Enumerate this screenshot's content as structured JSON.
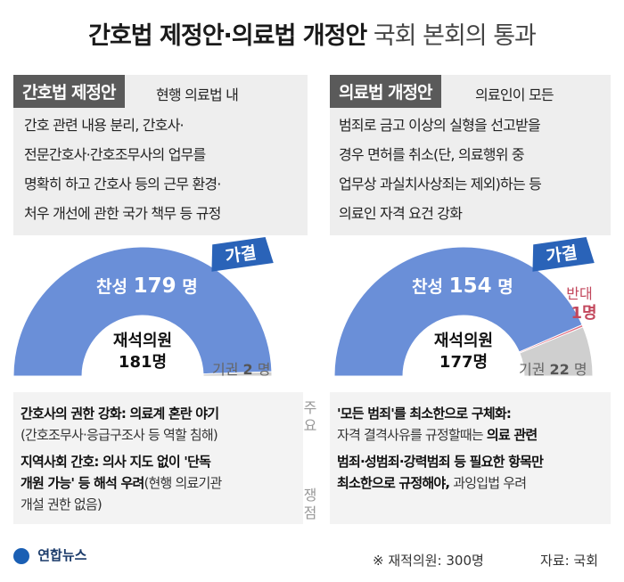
{
  "title": {
    "bold": "간호법 제정안·의료법 개정안",
    "light": "국회 본회의 통과"
  },
  "left": {
    "tag": "간호법 제정안",
    "desc": [
      "현행 의료법 내",
      "간호 관련 내용 분리, 간호사·",
      "전문간호사·간호조무사의 업무를",
      "명확히 하고 간호사 등의 근무 환경·",
      "처우 개선에 관한 국가 책무 등 규정"
    ],
    "result": "가결",
    "yes_label": "찬성",
    "yes_value": "179",
    "unit": "명",
    "present_label": "재석의원",
    "present_value": "181명",
    "abstain_label": "기권",
    "abstain_value": "2",
    "abstain_unit": "명"
  },
  "right": {
    "tag": "의료법 개정안",
    "desc": [
      "의료인이 모든",
      "범죄로 금고 이상의 실형을 선고받을",
      "경우 면허를 취소(단, 의료행위 중",
      "업무상 과실치사상죄는 제외)하는 등",
      "의료인 자격 요건 강화"
    ],
    "result": "가결",
    "yes_label": "찬성",
    "yes_value": "154",
    "unit": "명",
    "no_label": "반대",
    "no_value": "1명",
    "present_label": "재석의원",
    "present_value": "177명",
    "abstain_label": "기권",
    "abstain_value": "22",
    "abstain_unit": "명"
  },
  "issues_label": [
    "주",
    "요",
    "쟁",
    "점"
  ],
  "issues_left": [
    {
      "bold": "간호사의 권한 강화: 의료계 혼란 야기",
      "normal": ""
    },
    {
      "bold": "",
      "normal": "(간호조무사·응급구조사 등 역할 침해)"
    },
    {
      "bold": "지역사회 간호: 의사 지도 없이 '단독",
      "normal": ""
    },
    {
      "bold": "개원 가능' 등 해석 우려",
      "normal": "(현행 의료기관"
    },
    {
      "bold": "",
      "normal": "개설 권한 없음)"
    }
  ],
  "issues_right": [
    {
      "bold": "'모든 범죄'를 최소한으로 구체화:",
      "normal": ""
    },
    {
      "bold": "",
      "normal": "자격 결격사유를 규정할때는 ",
      "bold2": "의료 관련"
    },
    {
      "bold": "범죄·성범죄·강력범죄 등 필요한 항목만",
      "normal": ""
    },
    {
      "bold": "최소한으로 규정해야,",
      "normal": " 과잉입법 우려"
    }
  ],
  "footer": {
    "logo": "연합뉴스",
    "note": "※ 재적의원: 300명",
    "source": "자료: 국회"
  },
  "colors": {
    "yes": "#6a8fd8",
    "no": "#e06b7e",
    "abstain": "#cfcfcf",
    "result_bg": "#2a63b8",
    "tag_bg": "#5a5a5a"
  },
  "chart_data": [
    {
      "type": "pie",
      "title": "간호법 제정안",
      "categories": [
        "찬성",
        "기권"
      ],
      "values": [
        179,
        2
      ],
      "total_present": 181,
      "result": "가결"
    },
    {
      "type": "pie",
      "title": "의료법 개정안",
      "categories": [
        "찬성",
        "반대",
        "기권"
      ],
      "values": [
        154,
        1,
        22
      ],
      "total_present": 177,
      "result": "가결"
    }
  ]
}
